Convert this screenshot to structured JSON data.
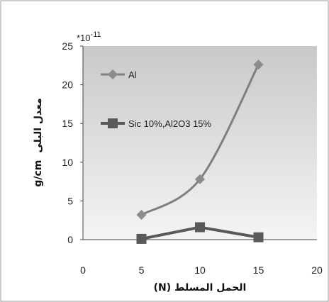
{
  "chart_data": {
    "type": "line",
    "x": [
      5,
      10,
      15
    ],
    "series": [
      {
        "name": "Al",
        "values": [
          3.2,
          7.8,
          22.6
        ],
        "color": "#7f7f7f",
        "marker": "diamond"
      },
      {
        "name": "Sic 10%,Al2O3 15%",
        "values": [
          0.1,
          1.6,
          0.3
        ],
        "color": "#595959",
        "marker": "square"
      }
    ],
    "xlabel": "الحمل المسلط (N)",
    "ylabel_unit": "g/cm",
    "ylabel_text": "معدل البلى",
    "y_multiplier": "*10",
    "y_multiplier_exp": "-11",
    "xlim": [
      0,
      20
    ],
    "ylim": [
      0,
      25
    ],
    "x_ticks": [
      0,
      5,
      10,
      15,
      20
    ],
    "y_ticks": [
      0,
      5,
      10,
      15,
      20,
      25
    ],
    "grid": false,
    "legend_position": "top-left",
    "plot_background": "#e6e6e6"
  }
}
